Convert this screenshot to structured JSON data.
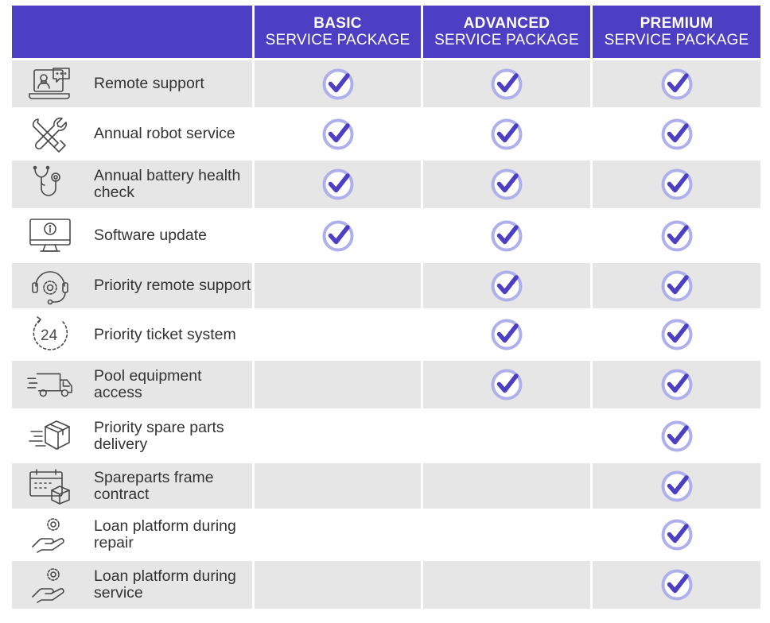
{
  "colors": {
    "header_bg": "#4c3fc3",
    "check_ring": "#aeb0ec",
    "check_mark": "#4c3fc3",
    "shaded_row": "#e6e6e6"
  },
  "packages": [
    {
      "name": "BASIC",
      "sub": "SERVICE PACKAGE"
    },
    {
      "name": "ADVANCED",
      "sub": "SERVICE PACKAGE"
    },
    {
      "name": "PREMIUM",
      "sub": "SERVICE PACKAGE"
    }
  ],
  "features": [
    {
      "label": "Remote support",
      "icon": "remote-support-icon",
      "basic": true,
      "advanced": true,
      "premium": true
    },
    {
      "label": "Annual robot service",
      "icon": "tools-icon",
      "basic": true,
      "advanced": true,
      "premium": true
    },
    {
      "label": "Annual battery health check",
      "icon": "stethoscope-icon",
      "basic": true,
      "advanced": true,
      "premium": true
    },
    {
      "label": "Software update",
      "icon": "monitor-info-icon",
      "basic": true,
      "advanced": true,
      "premium": true
    },
    {
      "label": "Priority remote support",
      "icon": "headset-gear-icon",
      "basic": false,
      "advanced": true,
      "premium": true
    },
    {
      "label": "Priority ticket system",
      "icon": "clock-24-icon",
      "basic": false,
      "advanced": true,
      "premium": true
    },
    {
      "label": "Pool equipment access",
      "icon": "delivery-truck-icon",
      "basic": false,
      "advanced": true,
      "premium": true
    },
    {
      "label": "Priority spare parts delivery",
      "icon": "fast-package-icon",
      "basic": false,
      "advanced": false,
      "premium": true
    },
    {
      "label": "Spareparts frame contract",
      "icon": "calendar-package-icon",
      "basic": false,
      "advanced": false,
      "premium": true
    },
    {
      "label": "Loan platform during repair",
      "icon": "hand-gear-icon",
      "basic": false,
      "advanced": false,
      "premium": true
    },
    {
      "label": "Loan platform during service",
      "icon": "hand-gear-icon",
      "basic": false,
      "advanced": false,
      "premium": true
    }
  ]
}
